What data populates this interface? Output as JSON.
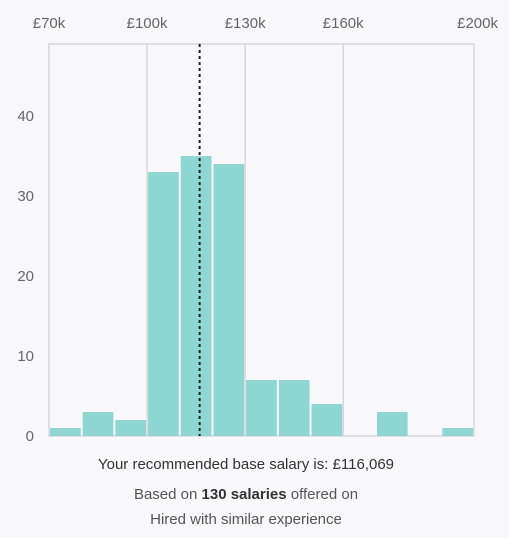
{
  "chart_data": {
    "type": "bar",
    "x_ticks": [
      "£70k",
      "£100k",
      "£130k",
      "£160k",
      "£200k"
    ],
    "x_tick_values": [
      70000,
      100000,
      130000,
      160000,
      200000
    ],
    "xlim": [
      70000,
      200000
    ],
    "bin_width": 10000,
    "bins": [
      {
        "start": 70000,
        "end": 80000,
        "value": 1
      },
      {
        "start": 80000,
        "end": 90000,
        "value": 3
      },
      {
        "start": 90000,
        "end": 100000,
        "value": 2
      },
      {
        "start": 100000,
        "end": 110000,
        "value": 33
      },
      {
        "start": 110000,
        "end": 120000,
        "value": 35
      },
      {
        "start": 120000,
        "end": 130000,
        "value": 34
      },
      {
        "start": 130000,
        "end": 140000,
        "value": 7
      },
      {
        "start": 140000,
        "end": 150000,
        "value": 7
      },
      {
        "start": 150000,
        "end": 160000,
        "value": 4
      },
      {
        "start": 170000,
        "end": 180000,
        "value": 3
      },
      {
        "start": 190000,
        "end": 200000,
        "value": 1
      }
    ],
    "y_ticks": [
      0,
      10,
      20,
      30,
      40
    ],
    "ylim": [
      0,
      49
    ],
    "marker": {
      "value": 116069,
      "style": "dotted"
    },
    "grid": "vertical at labelled x ticks",
    "colors": {
      "bar": "#8dd6d2",
      "grid": "#cfcfd4",
      "marker": "#222222"
    }
  },
  "summary": {
    "recommendation_prefix": "Your recommended base salary is: ",
    "recommendation_value": "£116,069",
    "basis_prefix": "Based on ",
    "basis_count": "130 salaries",
    "basis_suffix": " offered on",
    "basis_line2": "Hired with similar experience"
  }
}
